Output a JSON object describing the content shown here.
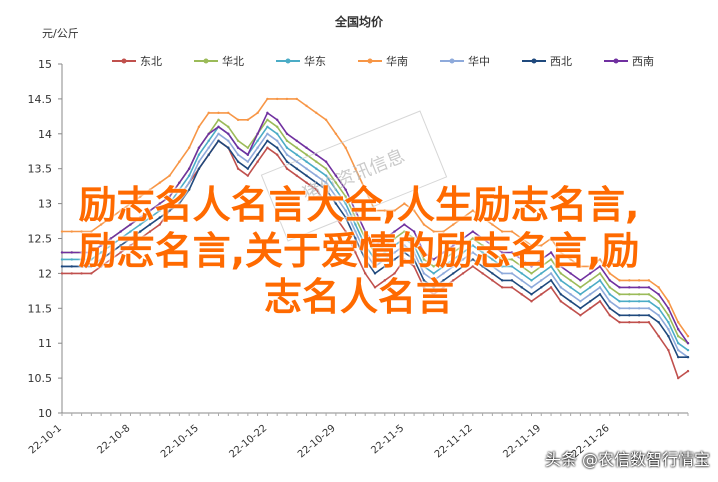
{
  "chart_data": {
    "type": "line",
    "title": "全国均价",
    "ylabel": "元/公斤",
    "ylim": [
      10,
      15
    ],
    "yticks": [
      "10",
      "10.5",
      "11",
      "11.5",
      "12",
      "12.5",
      "13",
      "13.5",
      "14",
      "14.5",
      "15"
    ],
    "x_tick_labels": [
      "22-10-1",
      "22-10-8",
      "22-10-15",
      "22-10-22",
      "22-10-29",
      "22-11-5",
      "22-11-12",
      "22-11-19",
      "22-11-26"
    ],
    "legend_position": "top",
    "grid": false,
    "series": [
      {
        "name": "东北",
        "color": "#c0504d",
        "values": [
          12.0,
          12.0,
          12.0,
          12.0,
          12.1,
          12.2,
          12.3,
          12.4,
          12.5,
          12.6,
          12.7,
          12.9,
          13.1,
          13.3,
          13.5,
          13.7,
          13.9,
          13.8,
          13.5,
          13.4,
          13.6,
          13.8,
          13.7,
          13.5,
          13.4,
          13.3,
          13.2,
          13.0,
          12.8,
          12.6,
          12.3,
          12.0,
          11.8,
          11.9,
          12.0,
          12.2,
          12.1,
          11.8,
          11.7,
          11.8,
          11.9,
          12.0,
          12.1,
          12.0,
          11.9,
          11.8,
          11.8,
          11.7,
          11.6,
          11.7,
          11.8,
          11.6,
          11.5,
          11.4,
          11.5,
          11.6,
          11.4,
          11.3,
          11.3,
          11.3,
          11.3,
          11.1,
          10.9,
          10.5,
          10.6
        ]
      },
      {
        "name": "华北",
        "color": "#9bbb59",
        "values": [
          12.3,
          12.3,
          12.3,
          12.3,
          12.4,
          12.5,
          12.6,
          12.7,
          12.8,
          12.9,
          13.0,
          13.1,
          13.3,
          13.5,
          13.8,
          14.0,
          14.2,
          14.1,
          13.9,
          13.8,
          14.0,
          14.2,
          14.1,
          13.9,
          13.8,
          13.7,
          13.6,
          13.5,
          13.3,
          13.1,
          12.8,
          12.5,
          12.3,
          12.4,
          12.5,
          12.6,
          12.5,
          12.2,
          12.1,
          12.2,
          12.3,
          12.4,
          12.5,
          12.4,
          12.3,
          12.2,
          12.2,
          12.1,
          12.0,
          12.1,
          12.2,
          12.0,
          11.9,
          11.8,
          11.9,
          12.0,
          11.8,
          11.7,
          11.7,
          11.7,
          11.7,
          11.6,
          11.4,
          11.1,
          11.0
        ]
      },
      {
        "name": "华东",
        "color": "#4bacc6",
        "values": [
          12.2,
          12.2,
          12.2,
          12.2,
          12.3,
          12.4,
          12.5,
          12.6,
          12.7,
          12.8,
          12.9,
          13.0,
          13.2,
          13.4,
          13.7,
          13.9,
          14.1,
          14.0,
          13.8,
          13.7,
          13.9,
          14.1,
          14.0,
          13.8,
          13.7,
          13.6,
          13.5,
          13.4,
          13.2,
          13.0,
          12.7,
          12.4,
          12.2,
          12.3,
          12.4,
          12.5,
          12.4,
          12.1,
          12.0,
          12.1,
          12.2,
          12.3,
          12.4,
          12.3,
          12.2,
          12.1,
          12.1,
          12.0,
          11.9,
          12.0,
          12.1,
          11.9,
          11.8,
          11.7,
          11.8,
          11.9,
          11.7,
          11.6,
          11.6,
          11.6,
          11.6,
          11.5,
          11.3,
          11.0,
          10.9
        ]
      },
      {
        "name": "华南",
        "color": "#f79646",
        "values": [
          12.6,
          12.6,
          12.6,
          12.6,
          12.7,
          12.8,
          12.9,
          13.0,
          13.1,
          13.2,
          13.3,
          13.4,
          13.6,
          13.8,
          14.1,
          14.3,
          14.3,
          14.3,
          14.2,
          14.2,
          14.3,
          14.5,
          14.5,
          14.5,
          14.5,
          14.4,
          14.3,
          14.2,
          14.0,
          13.8,
          13.5,
          13.2,
          12.9,
          12.9,
          12.9,
          13.0,
          12.9,
          12.7,
          12.6,
          12.6,
          12.7,
          12.8,
          12.9,
          12.8,
          12.7,
          12.6,
          12.6,
          12.5,
          12.4,
          12.4,
          12.5,
          12.3,
          12.2,
          12.1,
          12.1,
          12.2,
          12.0,
          11.9,
          11.9,
          11.9,
          11.9,
          11.8,
          11.6,
          11.3,
          11.1
        ]
      },
      {
        "name": "华中",
        "color": "#8eaadb",
        "values": [
          12.1,
          12.1,
          12.1,
          12.1,
          12.2,
          12.3,
          12.4,
          12.5,
          12.6,
          12.7,
          12.8,
          12.9,
          13.1,
          13.3,
          13.6,
          13.8,
          14.0,
          13.9,
          13.7,
          13.6,
          13.8,
          14.0,
          13.9,
          13.7,
          13.6,
          13.5,
          13.4,
          13.3,
          13.1,
          12.9,
          12.6,
          12.3,
          12.1,
          12.2,
          12.3,
          12.4,
          12.3,
          12.0,
          11.9,
          12.0,
          12.1,
          12.2,
          12.3,
          12.2,
          12.1,
          12.0,
          12.0,
          11.9,
          11.8,
          11.9,
          12.0,
          11.8,
          11.7,
          11.6,
          11.7,
          11.8,
          11.6,
          11.5,
          11.5,
          11.5,
          11.5,
          11.4,
          11.2,
          10.9,
          10.8
        ]
      },
      {
        "name": "西北",
        "color": "#1f497d",
        "values": [
          12.1,
          12.1,
          12.1,
          12.1,
          12.2,
          12.3,
          12.4,
          12.5,
          12.6,
          12.7,
          12.8,
          12.9,
          13.0,
          13.2,
          13.5,
          13.7,
          13.9,
          13.8,
          13.6,
          13.5,
          13.7,
          13.9,
          13.8,
          13.6,
          13.5,
          13.4,
          13.3,
          13.2,
          13.0,
          12.8,
          12.5,
          12.2,
          12.0,
          12.1,
          12.2,
          12.3,
          12.2,
          11.9,
          11.8,
          11.9,
          12.0,
          12.1,
          12.2,
          12.1,
          12.0,
          11.9,
          11.9,
          11.8,
          11.7,
          11.8,
          11.9,
          11.7,
          11.6,
          11.5,
          11.6,
          11.7,
          11.5,
          11.4,
          11.4,
          11.4,
          11.4,
          11.3,
          11.1,
          10.8,
          10.8
        ]
      },
      {
        "name": "西南",
        "color": "#7030a0",
        "values": [
          12.3,
          12.3,
          12.3,
          12.3,
          12.4,
          12.5,
          12.6,
          12.7,
          12.8,
          12.9,
          13.0,
          13.1,
          13.3,
          13.5,
          13.8,
          14.0,
          14.1,
          14.0,
          13.8,
          13.7,
          14.0,
          14.3,
          14.2,
          14.0,
          13.9,
          13.8,
          13.7,
          13.6,
          13.4,
          13.2,
          12.9,
          12.6,
          12.4,
          12.5,
          12.6,
          12.7,
          12.6,
          12.3,
          12.2,
          12.3,
          12.4,
          12.5,
          12.6,
          12.5,
          12.4,
          12.3,
          12.3,
          12.2,
          12.1,
          12.2,
          12.3,
          12.1,
          12.0,
          11.9,
          12.0,
          12.1,
          11.9,
          11.8,
          11.8,
          11.8,
          11.8,
          11.7,
          11.5,
          11.2,
          11.0
        ]
      }
    ]
  },
  "overlay": {
    "line1": "励志名人名言大全,人生励志名言,",
    "line2": "励志名言,关于爱情的励志名言,励",
    "line3": "志名人名言"
  },
  "watermark_text": "猪价资讯信息",
  "credit": "头条 @农信数智行情宝"
}
